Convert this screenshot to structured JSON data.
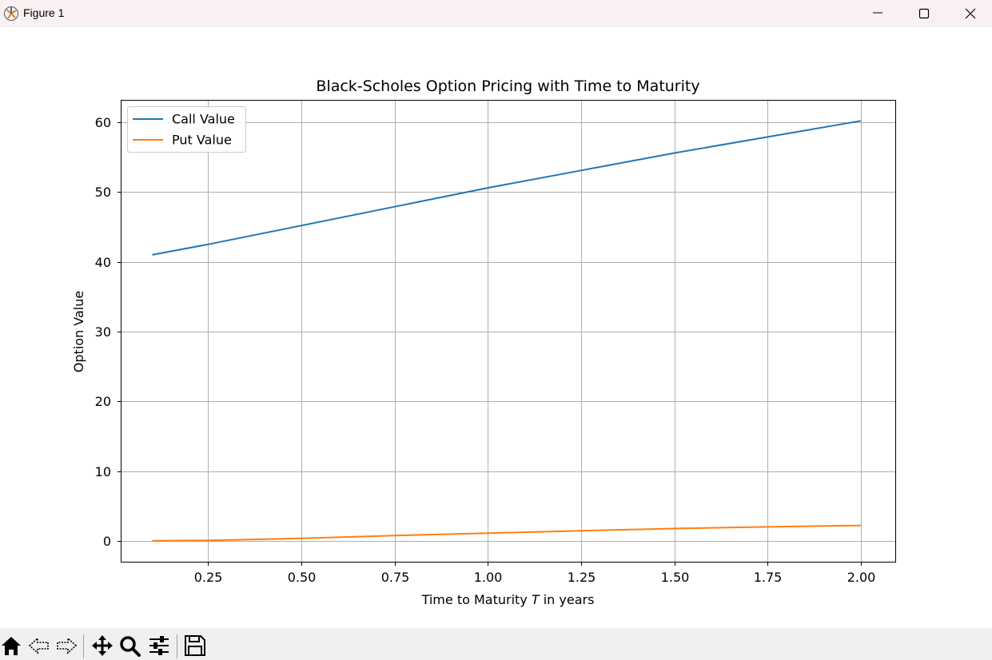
{
  "window": {
    "title": "Figure 1",
    "icons": [
      "app-icon",
      "minimize-icon",
      "maximize-icon",
      "close-icon"
    ]
  },
  "toolbar": {
    "icons": [
      "home-icon",
      "back-icon",
      "forward-icon",
      "pan-icon",
      "zoom-icon",
      "configure-subplots-icon",
      "save-icon"
    ]
  },
  "chart_data": {
    "type": "line",
    "title": "Black-Scholes Option Pricing with Time to Maturity",
    "xlabel_parts": [
      "Time to Maturity ",
      "T",
      " in years"
    ],
    "ylabel": "Option Value",
    "xlim": [
      0.0175,
      2.0925
    ],
    "ylim": [
      -3.0,
      63.1
    ],
    "xticks": [
      0.25,
      0.5,
      0.75,
      1.0,
      1.25,
      1.5,
      1.75,
      2.0
    ],
    "xtick_labels": [
      "0.25",
      "0.50",
      "0.75",
      "1.00",
      "1.25",
      "1.50",
      "1.75",
      "2.00"
    ],
    "yticks": [
      0,
      10,
      20,
      30,
      40,
      50,
      60
    ],
    "ytick_labels": [
      "0",
      "10",
      "20",
      "30",
      "40",
      "50",
      "60"
    ],
    "grid": true,
    "legend_position": "upper left",
    "series": [
      {
        "name": "Call Value",
        "color": "#1f77b4",
        "x": [
          0.1,
          0.25,
          0.5,
          0.75,
          1.0,
          1.25,
          1.5,
          1.75,
          2.0
        ],
        "y": [
          41.0,
          42.5,
          45.2,
          47.9,
          50.6,
          53.1,
          55.6,
          57.9,
          60.2
        ]
      },
      {
        "name": "Put Value",
        "color": "#ff7f0e",
        "x": [
          0.1,
          0.25,
          0.5,
          0.75,
          1.0,
          1.25,
          1.5,
          1.75,
          2.0
        ],
        "y": [
          0.0,
          0.05,
          0.35,
          0.75,
          1.1,
          1.45,
          1.75,
          2.0,
          2.2
        ]
      }
    ]
  }
}
